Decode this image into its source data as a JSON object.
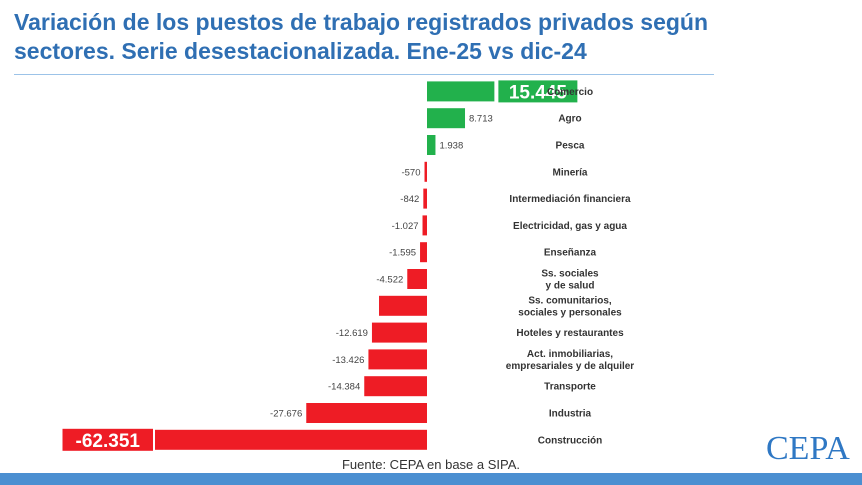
{
  "header": {
    "title_line1": "Variación de los puestos de trabajo registrados privados según",
    "title_line2": "sectores. Serie desestacionalizada. Ene-25 vs dic-24"
  },
  "footer": {
    "source": "Fuente: CEPA en base a SIPA.",
    "logo_text": "CEPA"
  },
  "colors": {
    "positive": "#22b14c",
    "negative": "#ee1c25",
    "title": "#2f6fb3",
    "highlight_text": "#ffffff"
  },
  "chart_data": {
    "type": "bar",
    "orientation": "horizontal",
    "categories": [
      "Comercio",
      "Agro",
      "Pesca",
      "Minería",
      "Intermediación financiera",
      "Electricidad, gas y agua",
      "Enseñanza",
      "Ss. sociales\ny de salud",
      "Ss. comunitarios,\nsociales y personales",
      "Hoteles y restaurantes",
      "Act. inmobiliarias,\nempresariales y de alquiler",
      "Transporte",
      "Industria",
      "Construcción"
    ],
    "values": [
      15445,
      8713,
      1938,
      -570,
      -842,
      -1027,
      -1595,
      -4522,
      -11000,
      -12619,
      -13426,
      -14384,
      -27676,
      -62351
    ],
    "labels": [
      "15.445",
      "8.713",
      "1.938",
      "-570",
      "-842",
      "-1.027",
      "-1.595",
      "-4.522",
      "",
      "-12.619",
      "-13.426",
      "-14.384",
      "-27.676",
      "-62.351"
    ],
    "highlighted": [
      "Comercio",
      "Construcción"
    ],
    "xlim": [
      -62351,
      15445
    ],
    "grid": false,
    "legend": "none"
  }
}
